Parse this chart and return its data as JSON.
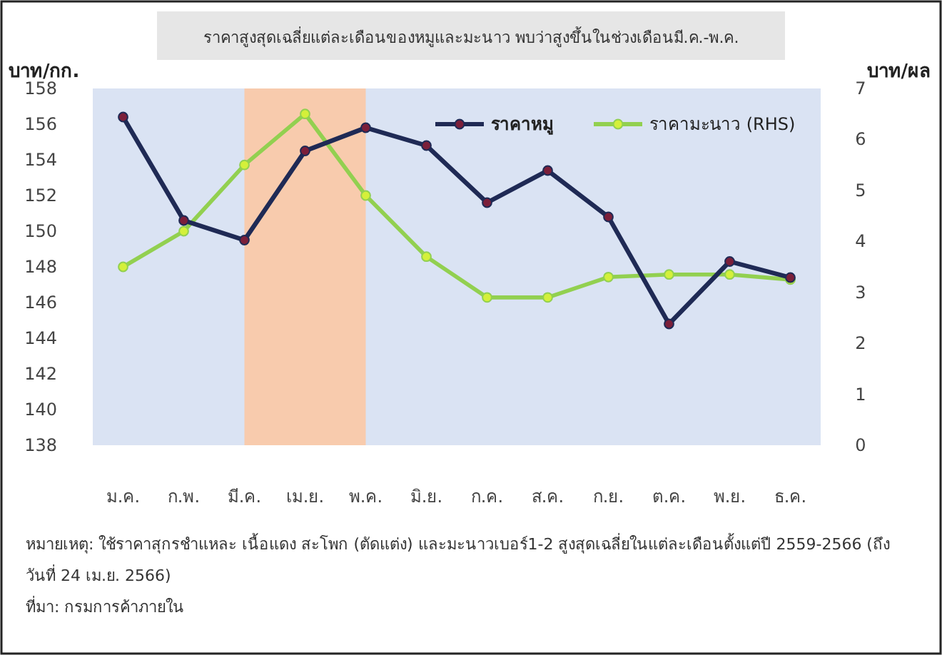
{
  "chart_data": {
    "type": "line",
    "title": "ราคาสูงสุดเฉลี่ยแต่ละเดือนของหมูและมะนาว พบว่าสูงขึ้นในช่วงเดือนมี.ค.-พ.ค.",
    "ylabel": "บาท/กก.",
    "y2label": "บาท/ผล",
    "categories": [
      "ม.ค.",
      "ก.พ.",
      "มี.ค.",
      "เม.ย.",
      "พ.ค.",
      "มิ.ย.",
      "ก.ค.",
      "ส.ค.",
      "ก.ย.",
      "ต.ค.",
      "พ.ย.",
      "ธ.ค."
    ],
    "series": [
      {
        "name": "ราคาหมู",
        "color": "#1f2a55",
        "values": [
          156.4,
          150.6,
          149.5,
          154.5,
          155.8,
          154.8,
          151.6,
          153.4,
          150.8,
          144.8,
          148.3,
          147.4
        ]
      },
      {
        "name": "ราคามะนาว (RHS)",
        "color": "#92d050",
        "axis": "y2",
        "values": [
          3.5,
          4.2,
          5.5,
          6.5,
          4.9,
          3.7,
          2.9,
          2.9,
          3.3,
          3.35,
          3.35,
          3.25
        ]
      }
    ],
    "ylim": [
      138,
      158
    ],
    "yticks": [
      138,
      140,
      142,
      144,
      146,
      148,
      150,
      152,
      154,
      156,
      158
    ],
    "y2lim": [
      0,
      7
    ],
    "y2ticks": [
      0,
      1,
      2,
      3,
      4,
      5,
      6,
      7
    ],
    "bands": [
      {
        "axis": "x",
        "from": "มี.ค.",
        "to": "พ.ค.",
        "color": "#f8cbad"
      }
    ],
    "marker": "circle",
    "legend": "top right",
    "grid": false,
    "annotations": [
      "หมายเหตุ: ใช้ราคาสุกรชำแหละ เนื้อแดง สะโพก (ตัดแต่ง) และมะนาวเบอร์1-2 สูงสุดเฉลี่ยในแต่ละเดือนตั้งแต่ปี 2559-2566 (ถึงวันที่ 24 เม.ย. 2566)",
      "ที่มา: กรมการค้าภายใน"
    ]
  }
}
